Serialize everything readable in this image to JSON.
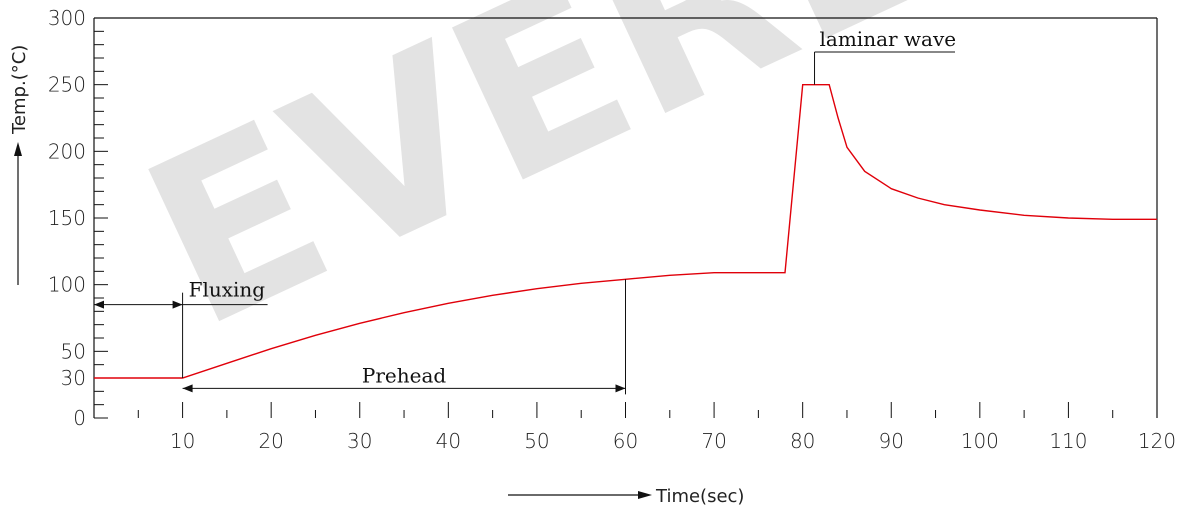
{
  "chart_data": {
    "type": "line",
    "watermark": "EVERE",
    "xlabel": "Time(sec)",
    "ylabel": "Temp.(°C)",
    "xlim": [
      0,
      120
    ],
    "ylim": [
      0,
      300
    ],
    "x_ticks": [
      10,
      20,
      30,
      40,
      50,
      60,
      70,
      80,
      90,
      100,
      110,
      120
    ],
    "y_ticks": [
      0,
      30,
      50,
      100,
      150,
      200,
      250,
      300
    ],
    "series": [
      {
        "color": "#e0000a",
        "points": [
          [
            0,
            30
          ],
          [
            10,
            30
          ],
          [
            15,
            41
          ],
          [
            20,
            52
          ],
          [
            25,
            62
          ],
          [
            30,
            71
          ],
          [
            35,
            79
          ],
          [
            40,
            86
          ],
          [
            45,
            92
          ],
          [
            50,
            97
          ],
          [
            55,
            101
          ],
          [
            60,
            104
          ],
          [
            65,
            107
          ],
          [
            70,
            109
          ],
          [
            75,
            109
          ],
          [
            78,
            109
          ],
          [
            80,
            250
          ],
          [
            83,
            250
          ],
          [
            84,
            225
          ],
          [
            85,
            203
          ],
          [
            87,
            185
          ],
          [
            90,
            172
          ],
          [
            93,
            165
          ],
          [
            96,
            160
          ],
          [
            100,
            156
          ],
          [
            105,
            152
          ],
          [
            110,
            150
          ],
          [
            115,
            149
          ],
          [
            120,
            149
          ]
        ]
      }
    ],
    "annotations": [
      {
        "text": "Fluxing",
        "from_x": 0,
        "to_x": 10,
        "y": 100
      },
      {
        "text": "Prehead",
        "from_x": 10,
        "to_x": 60,
        "y": 20
      },
      {
        "text": "laminar wave",
        "x": 81,
        "y": 250
      }
    ]
  }
}
